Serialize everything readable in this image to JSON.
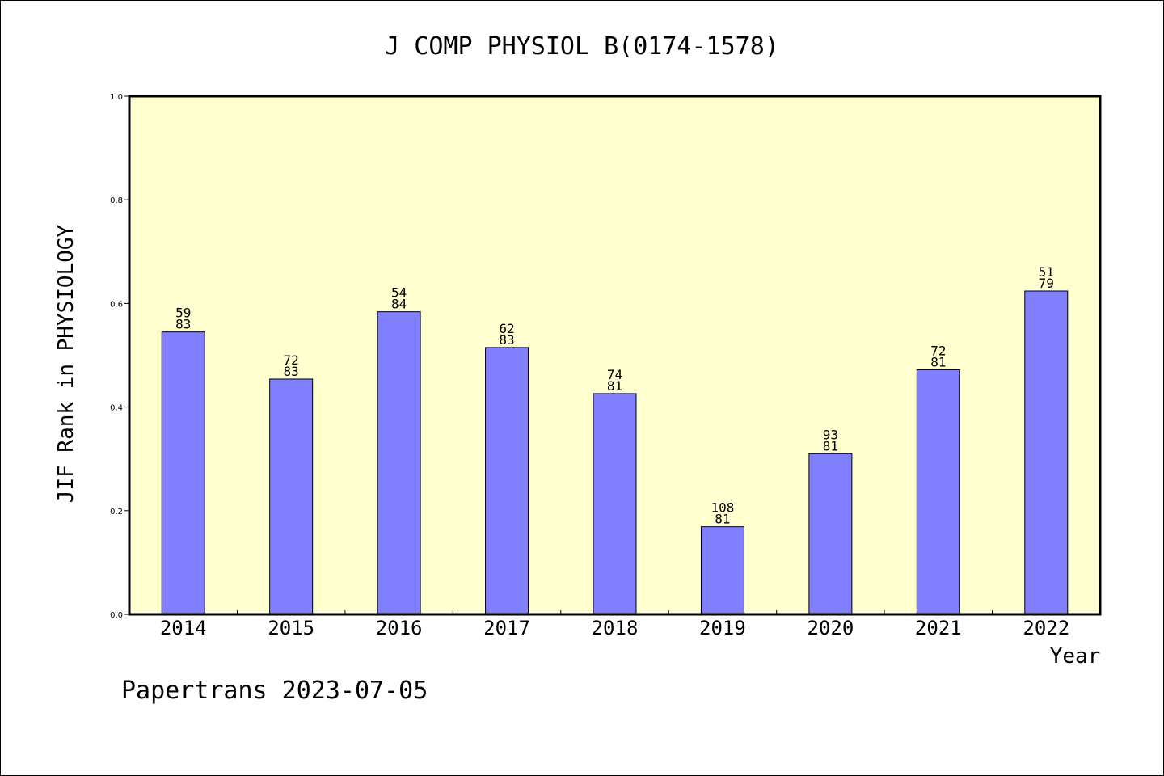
{
  "chart_data": {
    "type": "bar",
    "title": "J COMP PHYSIOL B(0174-1578)",
    "xlabel": "Year",
    "ylabel": "JIF Rank in PHYSIOLOGY",
    "ylim": [
      0,
      1.0
    ],
    "yticks": [
      "0.0",
      "0.2",
      "0.4",
      "0.6",
      "0.8",
      "1.0"
    ],
    "categories": [
      "2014",
      "2015",
      "2016",
      "2017",
      "2018",
      "2019",
      "2020",
      "2021",
      "2022"
    ],
    "values": [
      0.545,
      0.454,
      0.584,
      0.515,
      0.426,
      0.169,
      0.31,
      0.472,
      0.624
    ],
    "rank": [
      "59",
      "72",
      "54",
      "62",
      "74",
      "108",
      "93",
      "72",
      "51"
    ],
    "total": [
      "83",
      "83",
      "84",
      "83",
      "81",
      "81",
      "81",
      "81",
      "79"
    ],
    "colors": {
      "bar": "#8080ff",
      "plot_bg": "#ffffd0"
    },
    "grid": false
  },
  "footer": "Papertrans 2023-07-05"
}
